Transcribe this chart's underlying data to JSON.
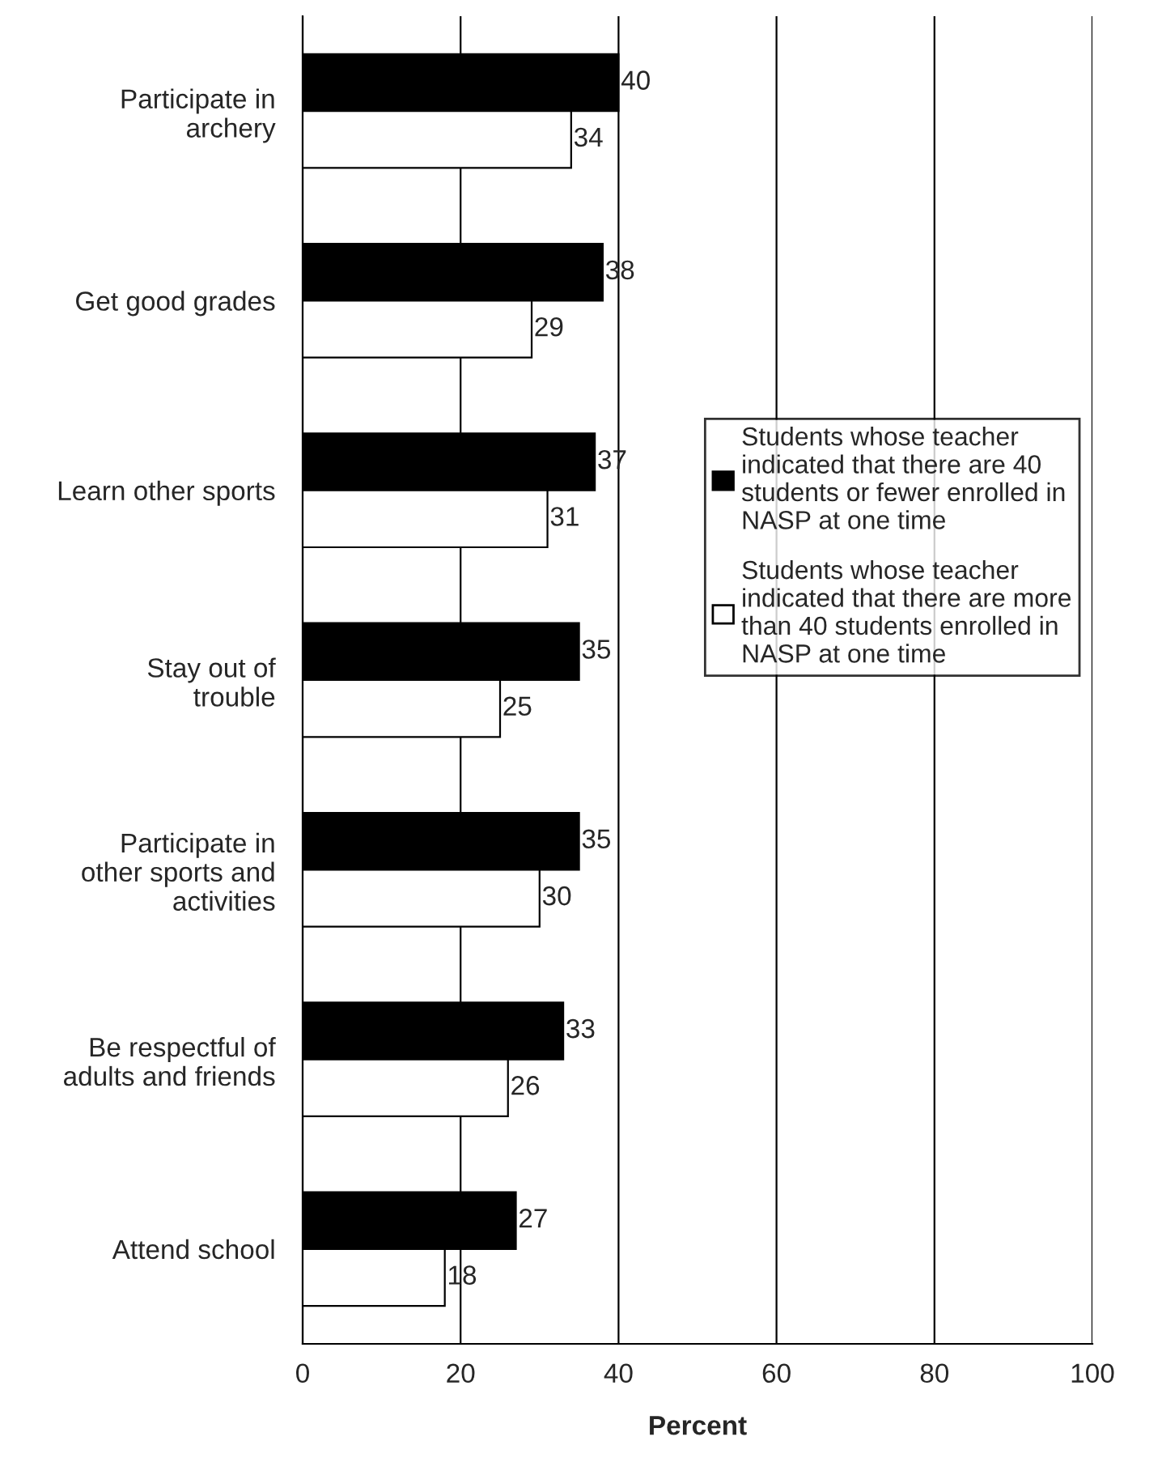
{
  "chart_data": {
    "type": "bar",
    "orientation": "horizontal",
    "xlabel": "Percent",
    "categories": [
      "Participate in archery",
      "Get good grades",
      "Learn other sports",
      "Stay out of trouble",
      "Participate in other sports and activities",
      "Be respectful of adults and friends",
      "Attend school"
    ],
    "series": [
      {
        "name": "Students whose teacher indicated that there are 40 students or fewer enrolled in NASP at one time",
        "color": "#000000",
        "values": [
          40,
          38,
          37,
          35,
          35,
          33,
          27
        ]
      },
      {
        "name": "Students whose teacher indicated that there are more than 40 students enrolled in NASP at one time",
        "color": "#ffffff",
        "values": [
          34,
          29,
          31,
          25,
          30,
          26,
          18
        ]
      }
    ],
    "xlim": [
      0,
      100
    ],
    "xticks": [
      0,
      20,
      40,
      60,
      80,
      100
    ],
    "grid": "x",
    "legend": "right",
    "data_labels": true
  }
}
